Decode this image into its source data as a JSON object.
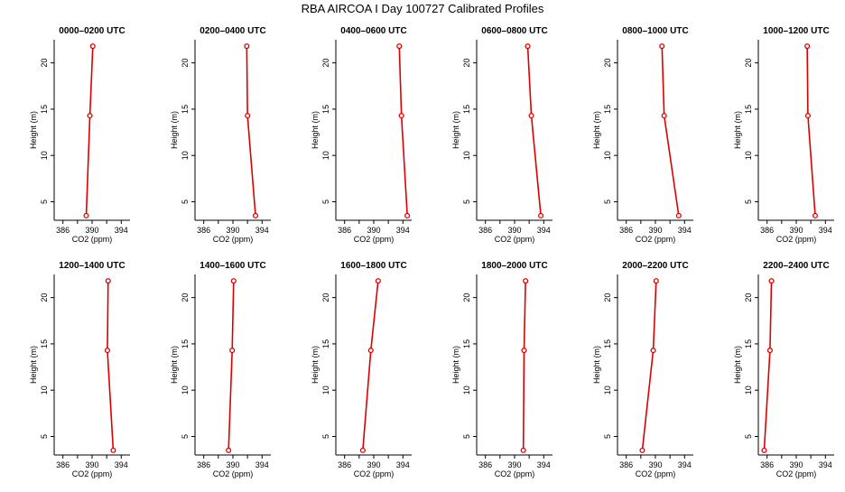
{
  "title": "RBA AIRCOA I  Day 100727  Calibrated Profiles",
  "colors": {
    "line": "#dd0000",
    "axis": "#000000",
    "background": "#ffffff"
  },
  "chart_data": [
    {
      "type": "line",
      "title": "0000–0200 UTC",
      "xlabel": "CO2 (ppm)",
      "ylabel": "Height (m)",
      "xlim": [
        384.8,
        395.2
      ],
      "ylim": [
        3,
        22.5
      ],
      "xticks": [
        386,
        390,
        394
      ],
      "yticks": [
        5,
        10,
        15,
        20
      ],
      "points": [
        {
          "x": 389.2,
          "y": 3.5
        },
        {
          "x": 389.7,
          "y": 14.3
        },
        {
          "x": 390.1,
          "y": 21.8
        }
      ]
    },
    {
      "type": "line",
      "title": "0200–0400 UTC",
      "xlabel": "CO2 (ppm)",
      "ylabel": "Height (m)",
      "xlim": [
        384.8,
        395.2
      ],
      "ylim": [
        3,
        22.5
      ],
      "xticks": [
        386,
        390,
        394
      ],
      "yticks": [
        5,
        10,
        15,
        20
      ],
      "points": [
        {
          "x": 393.1,
          "y": 3.5
        },
        {
          "x": 392.0,
          "y": 14.3
        },
        {
          "x": 391.9,
          "y": 21.8
        }
      ]
    },
    {
      "type": "line",
      "title": "0400–0600 UTC",
      "xlabel": "CO2 (ppm)",
      "ylabel": "Height (m)",
      "xlim": [
        384.8,
        395.2
      ],
      "ylim": [
        3,
        22.5
      ],
      "xticks": [
        386,
        390,
        394
      ],
      "yticks": [
        5,
        10,
        15,
        20
      ],
      "points": [
        {
          "x": 394.6,
          "y": 3.5
        },
        {
          "x": 393.8,
          "y": 14.3
        },
        {
          "x": 393.5,
          "y": 21.8
        }
      ]
    },
    {
      "type": "line",
      "title": "0600–0800 UTC",
      "xlabel": "CO2 (ppm)",
      "ylabel": "Height (m)",
      "xlim": [
        384.8,
        395.2
      ],
      "ylim": [
        3,
        22.5
      ],
      "xticks": [
        386,
        390,
        394
      ],
      "yticks": [
        5,
        10,
        15,
        20
      ],
      "points": [
        {
          "x": 393.6,
          "y": 3.5
        },
        {
          "x": 392.3,
          "y": 14.3
        },
        {
          "x": 391.8,
          "y": 21.8
        }
      ]
    },
    {
      "type": "line",
      "title": "0800–1000 UTC",
      "xlabel": "CO2 (ppm)",
      "ylabel": "Height (m)",
      "xlim": [
        384.8,
        395.2
      ],
      "ylim": [
        3,
        22.5
      ],
      "xticks": [
        386,
        390,
        394
      ],
      "yticks": [
        5,
        10,
        15,
        20
      ],
      "points": [
        {
          "x": 393.2,
          "y": 3.5
        },
        {
          "x": 391.2,
          "y": 14.3
        },
        {
          "x": 390.9,
          "y": 21.8
        }
      ]
    },
    {
      "type": "line",
      "title": "1000–1200 UTC",
      "xlabel": "CO2 (ppm)",
      "ylabel": "Height (m)",
      "xlim": [
        384.8,
        395.2
      ],
      "ylim": [
        3,
        22.5
      ],
      "xticks": [
        386,
        390,
        394
      ],
      "yticks": [
        5,
        10,
        15,
        20
      ],
      "points": [
        {
          "x": 392.6,
          "y": 3.5
        },
        {
          "x": 391.6,
          "y": 14.3
        },
        {
          "x": 391.5,
          "y": 21.8
        }
      ]
    },
    {
      "type": "line",
      "title": "1200–1400 UTC",
      "xlabel": "CO2 (ppm)",
      "ylabel": "Height (m)",
      "xlim": [
        384.8,
        395.2
      ],
      "ylim": [
        3,
        22.5
      ],
      "xticks": [
        386,
        390,
        394
      ],
      "yticks": [
        5,
        10,
        15,
        20
      ],
      "points": [
        {
          "x": 392.9,
          "y": 3.5
        },
        {
          "x": 392.1,
          "y": 14.3
        },
        {
          "x": 392.2,
          "y": 21.8
        }
      ]
    },
    {
      "type": "line",
      "title": "1400–1600 UTC",
      "xlabel": "CO2 (ppm)",
      "ylabel": "Height (m)",
      "xlim": [
        384.8,
        395.2
      ],
      "ylim": [
        3,
        22.5
      ],
      "xticks": [
        386,
        390,
        394
      ],
      "yticks": [
        5,
        10,
        15,
        20
      ],
      "points": [
        {
          "x": 389.4,
          "y": 3.5
        },
        {
          "x": 389.9,
          "y": 14.3
        },
        {
          "x": 390.1,
          "y": 21.8
        }
      ]
    },
    {
      "type": "line",
      "title": "1600–1800 UTC",
      "xlabel": "CO2 (ppm)",
      "ylabel": "Height (m)",
      "xlim": [
        384.8,
        395.2
      ],
      "ylim": [
        3,
        22.5
      ],
      "xticks": [
        386,
        390,
        394
      ],
      "yticks": [
        5,
        10,
        15,
        20
      ],
      "points": [
        {
          "x": 388.5,
          "y": 3.5
        },
        {
          "x": 389.6,
          "y": 14.3
        },
        {
          "x": 390.6,
          "y": 21.8
        }
      ]
    },
    {
      "type": "line",
      "title": "1800–2000 UTC",
      "xlabel": "CO2 (ppm)",
      "ylabel": "Height (m)",
      "xlim": [
        384.8,
        395.2
      ],
      "ylim": [
        3,
        22.5
      ],
      "xticks": [
        386,
        390,
        394
      ],
      "yticks": [
        5,
        10,
        15,
        20
      ],
      "points": [
        {
          "x": 391.2,
          "y": 3.5
        },
        {
          "x": 391.3,
          "y": 14.3
        },
        {
          "x": 391.5,
          "y": 21.8
        }
      ]
    },
    {
      "type": "line",
      "title": "2000–2200 UTC",
      "xlabel": "CO2 (ppm)",
      "ylabel": "Height (m)",
      "xlim": [
        384.8,
        395.2
      ],
      "ylim": [
        3,
        22.5
      ],
      "xticks": [
        386,
        390,
        394
      ],
      "yticks": [
        5,
        10,
        15,
        20
      ],
      "points": [
        {
          "x": 388.2,
          "y": 3.5
        },
        {
          "x": 389.7,
          "y": 14.3
        },
        {
          "x": 390.1,
          "y": 21.8
        }
      ]
    },
    {
      "type": "line",
      "title": "2200–2400 UTC",
      "xlabel": "CO2 (ppm)",
      "ylabel": "Height (m)",
      "xlim": [
        384.8,
        395.2
      ],
      "ylim": [
        3,
        22.5
      ],
      "xticks": [
        386,
        390,
        394
      ],
      "yticks": [
        5,
        10,
        15,
        20
      ],
      "points": [
        {
          "x": 385.6,
          "y": 3.5
        },
        {
          "x": 386.4,
          "y": 14.3
        },
        {
          "x": 386.6,
          "y": 21.8
        }
      ]
    }
  ]
}
